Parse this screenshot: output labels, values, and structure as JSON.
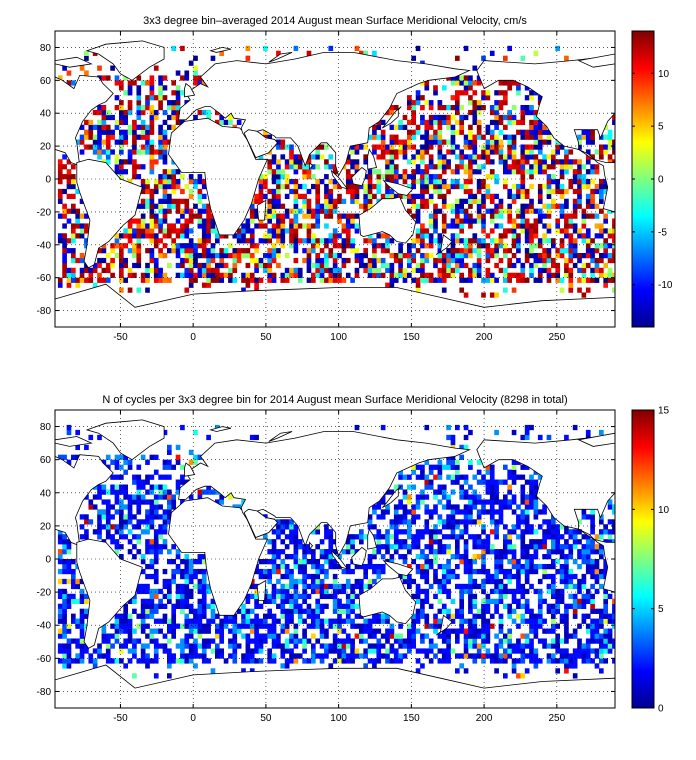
{
  "chart_data": [
    {
      "type": "heatmap",
      "title": "3x3 degree bin–averaged 2014 August mean Surface Meridional Velocity, cm/s",
      "xlabel": "",
      "ylabel": "",
      "xlim": [
        -95,
        290
      ],
      "ylim": [
        -90,
        90
      ],
      "x_ticks": [
        -50,
        0,
        50,
        100,
        150,
        200,
        250
      ],
      "y_ticks": [
        -80,
        -60,
        -40,
        -20,
        0,
        20,
        40,
        60,
        80
      ],
      "grid": true,
      "bin_size_deg": 3,
      "colormap": "jet",
      "colorbar": {
        "min": -14,
        "max": 14,
        "ticks": [
          -10,
          -5,
          0,
          5,
          10
        ]
      },
      "value_distribution": "near-random scatter spanning full range, strongest in western boundary currents"
    },
    {
      "type": "heatmap",
      "title": "N of cycles per 3x3 degree bin for 2014 August mean Surface Meridional Velocity (8298 in total)",
      "xlabel": "",
      "ylabel": "",
      "xlim": [
        -95,
        290
      ],
      "ylim": [
        -90,
        90
      ],
      "x_ticks": [
        -50,
        0,
        50,
        100,
        150,
        200,
        250
      ],
      "y_ticks": [
        -80,
        -60,
        -40,
        -20,
        0,
        20,
        40,
        60,
        80
      ],
      "grid": true,
      "bin_size_deg": 3,
      "colormap": "jet",
      "colorbar": {
        "min": 0,
        "max": 15,
        "ticks": [
          0,
          5,
          10,
          15
        ]
      },
      "total_cycles": 8298,
      "value_distribution": "mostly 0-4 cycles per bin, higher counts in marginal seas and western boundaries"
    }
  ]
}
